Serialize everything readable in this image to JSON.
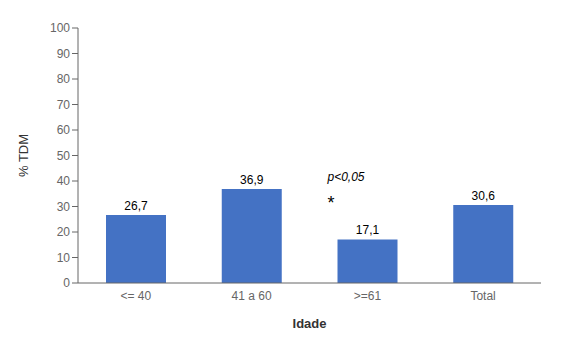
{
  "chart_data": {
    "type": "bar",
    "categories": [
      "<= 40",
      "41 a 60",
      ">=61",
      "Total"
    ],
    "values": [
      26.7,
      36.9,
      17.1,
      30.6
    ],
    "value_labels": [
      "26,7",
      "36,9",
      "17,1",
      "30,6"
    ],
    "data_labels": true,
    "color": "#4472C4",
    "ylabel": "% TDM",
    "xlabel": "Idade",
    "ylim": [
      0,
      100
    ],
    "yticks": [
      0,
      10,
      20,
      30,
      40,
      50,
      60,
      70,
      80,
      90,
      100
    ],
    "grid": false,
    "annotations": [
      {
        "text": "p<0,05",
        "category": ">=61"
      },
      {
        "text": "*",
        "category": ">=61"
      }
    ]
  }
}
